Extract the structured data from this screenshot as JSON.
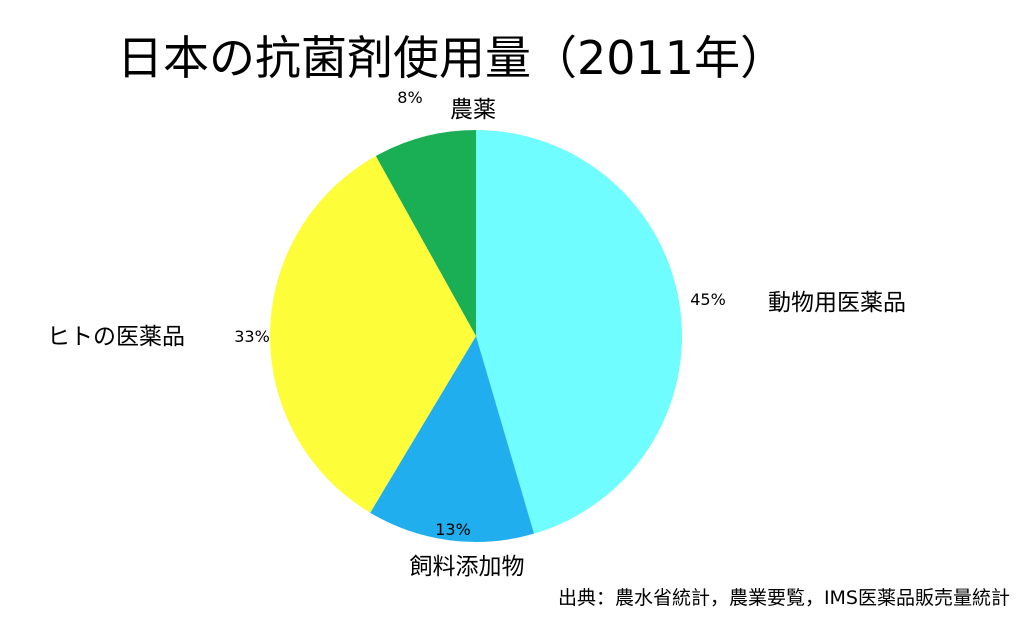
{
  "chart_data": {
    "type": "pie",
    "title": "日本の抗菌剤使用量（2011年）",
    "slices": [
      {
        "label": "動物用医薬品",
        "value": 45,
        "value_label": "45%",
        "color": "#6ffdff"
      },
      {
        "label": "飼料添加物",
        "value": 13,
        "value_label": "13%",
        "color": "#21aeee"
      },
      {
        "label": "ヒトの医薬品",
        "value": 33,
        "value_label": "33%",
        "color": "#fdfd3a"
      },
      {
        "label": "農薬",
        "value": 8,
        "value_label": "8%",
        "color": "#1aae55"
      }
    ],
    "start": "12 o'clock",
    "direction": "clockwise",
    "source": "出典：農水省統計，農業要覧，IMS医薬品販売量統計"
  }
}
